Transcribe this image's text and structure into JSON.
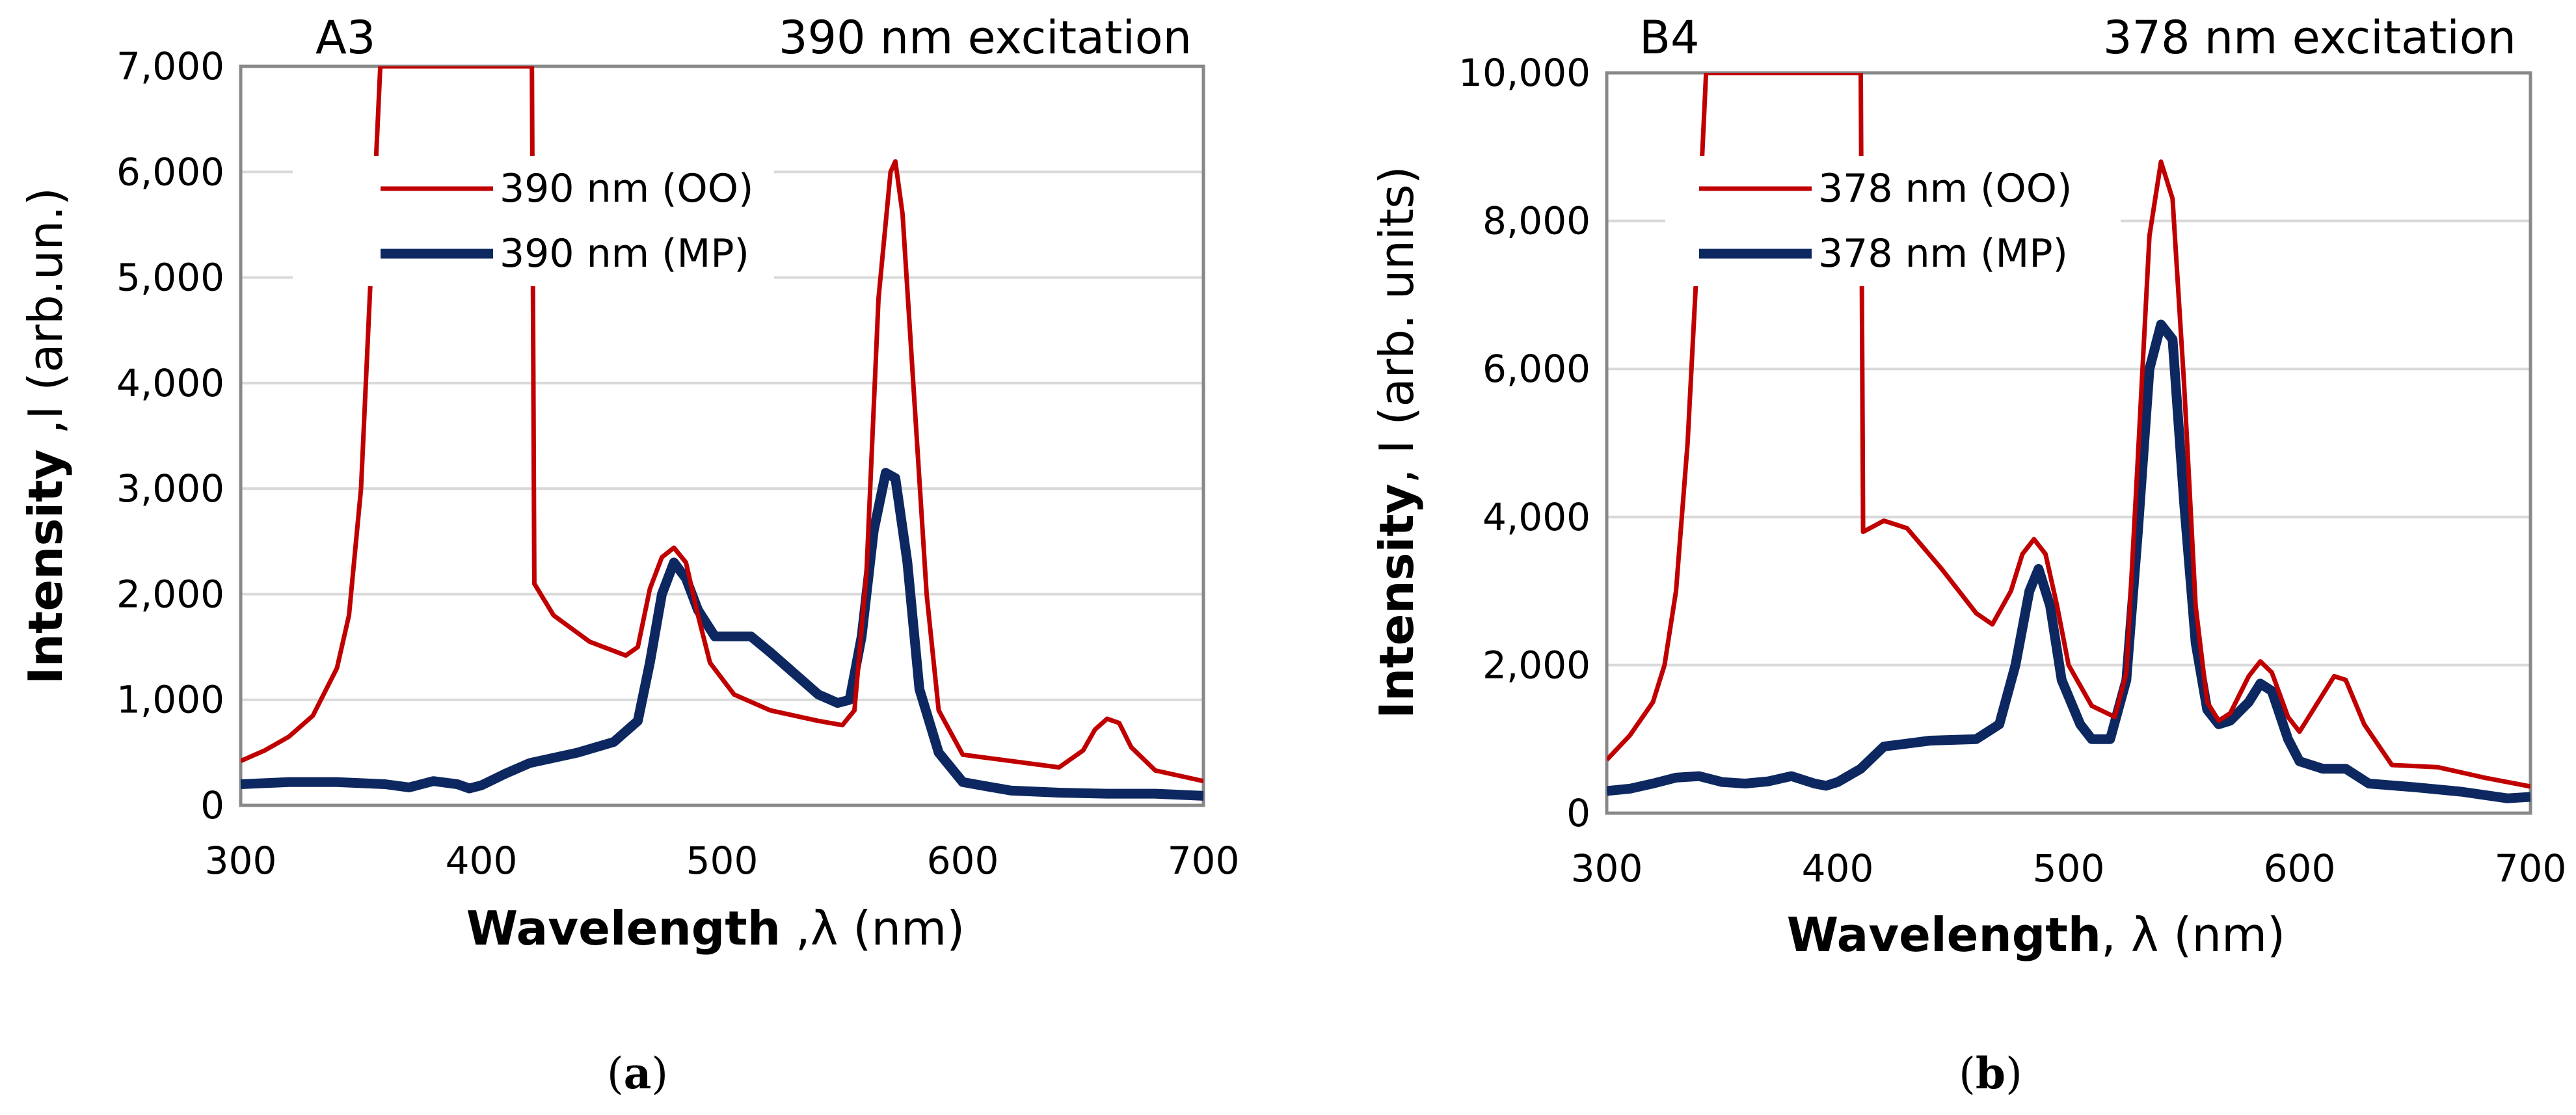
{
  "chart_data": [
    {
      "id": "a",
      "type": "line",
      "panel_label": "A3",
      "annotation": "390 nm excitation",
      "caption_letter": "a",
      "xlabel_bold": "Wavelength",
      "xlabel_rest": " ,λ (nm)",
      "ylabel_bold": "Intensity",
      "ylabel_rest": " ,I (arb.un.)",
      "xlim": [
        300,
        700
      ],
      "ylim": [
        0,
        7000
      ],
      "x_ticks": [
        300,
        400,
        500,
        600,
        700
      ],
      "x_tick_labels": [
        "300",
        "400",
        "500",
        "600",
        "700"
      ],
      "y_ticks": [
        0,
        1000,
        2000,
        3000,
        4000,
        5000,
        6000,
        7000
      ],
      "y_tick_labels": [
        "0",
        "1,000",
        "2,000",
        "3,000",
        "4,000",
        "5,000",
        "6,000",
        "7,000"
      ],
      "grid": true,
      "legend_position": "upper-left",
      "series": [
        {
          "name": "390 nm (OO)",
          "color": "#c00000",
          "style": "thin",
          "points": [
            [
              300,
              420
            ],
            [
              310,
              520
            ],
            [
              320,
              650
            ],
            [
              330,
              850
            ],
            [
              340,
              1300
            ],
            [
              345,
              1800
            ],
            [
              350,
              3000
            ],
            [
              355,
              5500
            ],
            [
              358,
              7000
            ],
            [
              421,
              7000
            ],
            [
              422,
              2100
            ],
            [
              430,
              1800
            ],
            [
              445,
              1550
            ],
            [
              460,
              1420
            ],
            [
              465,
              1500
            ],
            [
              470,
              2050
            ],
            [
              475,
              2350
            ],
            [
              480,
              2440
            ],
            [
              485,
              2300
            ],
            [
              490,
              1800
            ],
            [
              495,
              1350
            ],
            [
              505,
              1050
            ],
            [
              520,
              900
            ],
            [
              540,
              800
            ],
            [
              550,
              760
            ],
            [
              555,
              900
            ],
            [
              560,
              2200
            ],
            [
              565,
              4800
            ],
            [
              570,
              6000
            ],
            [
              572,
              6100
            ],
            [
              575,
              5600
            ],
            [
              580,
              3800
            ],
            [
              585,
              2000
            ],
            [
              590,
              900
            ],
            [
              600,
              480
            ],
            [
              620,
              420
            ],
            [
              640,
              360
            ],
            [
              650,
              520
            ],
            [
              655,
              720
            ],
            [
              660,
              820
            ],
            [
              665,
              780
            ],
            [
              670,
              550
            ],
            [
              680,
              330
            ],
            [
              700,
              230
            ]
          ]
        },
        {
          "name": "390 nm (MP)",
          "color": "#0d2860",
          "style": "thick",
          "points": [
            [
              300,
              200
            ],
            [
              320,
              220
            ],
            [
              340,
              220
            ],
            [
              360,
              200
            ],
            [
              370,
              170
            ],
            [
              380,
              230
            ],
            [
              390,
              200
            ],
            [
              395,
              160
            ],
            [
              400,
              190
            ],
            [
              410,
              300
            ],
            [
              420,
              400
            ],
            [
              440,
              500
            ],
            [
              455,
              600
            ],
            [
              465,
              800
            ],
            [
              470,
              1350
            ],
            [
              475,
              2000
            ],
            [
              480,
              2300
            ],
            [
              485,
              2150
            ],
            [
              490,
              1850
            ],
            [
              497,
              1600
            ],
            [
              505,
              1600
            ],
            [
              512,
              1600
            ],
            [
              520,
              1450
            ],
            [
              530,
              1250
            ],
            [
              540,
              1050
            ],
            [
              548,
              970
            ],
            [
              553,
              1000
            ],
            [
              558,
              1600
            ],
            [
              563,
              2600
            ],
            [
              568,
              3150
            ],
            [
              572,
              3100
            ],
            [
              577,
              2300
            ],
            [
              582,
              1100
            ],
            [
              590,
              500
            ],
            [
              600,
              220
            ],
            [
              620,
              140
            ],
            [
              640,
              120
            ],
            [
              660,
              110
            ],
            [
              680,
              110
            ],
            [
              700,
              90
            ]
          ]
        }
      ]
    },
    {
      "id": "b",
      "type": "line",
      "panel_label": "B4",
      "annotation": "378 nm excitation",
      "caption_letter": "b",
      "xlabel_bold": "Wavelength",
      "xlabel_rest": ", λ (nm)",
      "ylabel_bold": "Intensity",
      "ylabel_rest": ", I (arb. units)",
      "xlim": [
        300,
        700
      ],
      "ylim": [
        0,
        10000
      ],
      "x_ticks": [
        300,
        400,
        500,
        600,
        700
      ],
      "x_tick_labels": [
        "300",
        "400",
        "500",
        "600",
        "700"
      ],
      "y_ticks": [
        0,
        2000,
        4000,
        6000,
        8000,
        10000
      ],
      "y_tick_labels": [
        "0",
        "2,000",
        "4,000",
        "6,000",
        "8,000",
        "10,000"
      ],
      "grid": true,
      "legend_position": "upper-left",
      "series": [
        {
          "name": "378 nm (OO)",
          "color": "#c00000",
          "style": "thin",
          "points": [
            [
              300,
              720
            ],
            [
              310,
              1050
            ],
            [
              320,
              1500
            ],
            [
              325,
              2000
            ],
            [
              330,
              3000
            ],
            [
              335,
              5000
            ],
            [
              340,
              8000
            ],
            [
              343,
              10000
            ],
            [
              410,
              10000
            ],
            [
              411,
              3800
            ],
            [
              420,
              3950
            ],
            [
              430,
              3850
            ],
            [
              445,
              3300
            ],
            [
              460,
              2700
            ],
            [
              467,
              2550
            ],
            [
              475,
              3000
            ],
            [
              480,
              3500
            ],
            [
              485,
              3700
            ],
            [
              490,
              3500
            ],
            [
              495,
              2800
            ],
            [
              500,
              2000
            ],
            [
              510,
              1450
            ],
            [
              520,
              1300
            ],
            [
              525,
              1900
            ],
            [
              530,
              4800
            ],
            [
              535,
              7800
            ],
            [
              540,
              8800
            ],
            [
              545,
              8300
            ],
            [
              550,
              5800
            ],
            [
              555,
              2800
            ],
            [
              560,
              1500
            ],
            [
              565,
              1250
            ],
            [
              570,
              1350
            ],
            [
              578,
              1850
            ],
            [
              583,
              2050
            ],
            [
              588,
              1900
            ],
            [
              595,
              1300
            ],
            [
              600,
              1100
            ],
            [
              608,
              1500
            ],
            [
              615,
              1850
            ],
            [
              620,
              1800
            ],
            [
              628,
              1200
            ],
            [
              640,
              650
            ],
            [
              660,
              620
            ],
            [
              680,
              480
            ],
            [
              700,
              360
            ]
          ]
        },
        {
          "name": "378 nm (MP)",
          "color": "#0d2860",
          "style": "thick",
          "points": [
            [
              300,
              300
            ],
            [
              310,
              330
            ],
            [
              320,
              400
            ],
            [
              330,
              480
            ],
            [
              340,
              500
            ],
            [
              350,
              420
            ],
            [
              360,
              400
            ],
            [
              370,
              430
            ],
            [
              380,
              500
            ],
            [
              390,
              400
            ],
            [
              395,
              370
            ],
            [
              400,
              420
            ],
            [
              410,
              600
            ],
            [
              420,
              900
            ],
            [
              440,
              980
            ],
            [
              460,
              1000
            ],
            [
              470,
              1200
            ],
            [
              477,
              2000
            ],
            [
              483,
              3000
            ],
            [
              487,
              3300
            ],
            [
              492,
              2800
            ],
            [
              497,
              1800
            ],
            [
              505,
              1200
            ],
            [
              510,
              1000
            ],
            [
              518,
              1000
            ],
            [
              525,
              1800
            ],
            [
              530,
              3800
            ],
            [
              535,
              6000
            ],
            [
              540,
              6600
            ],
            [
              545,
              6400
            ],
            [
              550,
              4200
            ],
            [
              555,
              2300
            ],
            [
              560,
              1400
            ],
            [
              565,
              1200
            ],
            [
              570,
              1250
            ],
            [
              578,
              1500
            ],
            [
              583,
              1750
            ],
            [
              588,
              1650
            ],
            [
              595,
              1000
            ],
            [
              600,
              700
            ],
            [
              610,
              600
            ],
            [
              620,
              600
            ],
            [
              630,
              400
            ],
            [
              650,
              350
            ],
            [
              670,
              290
            ],
            [
              690,
              200
            ],
            [
              700,
              220
            ]
          ]
        }
      ]
    }
  ]
}
